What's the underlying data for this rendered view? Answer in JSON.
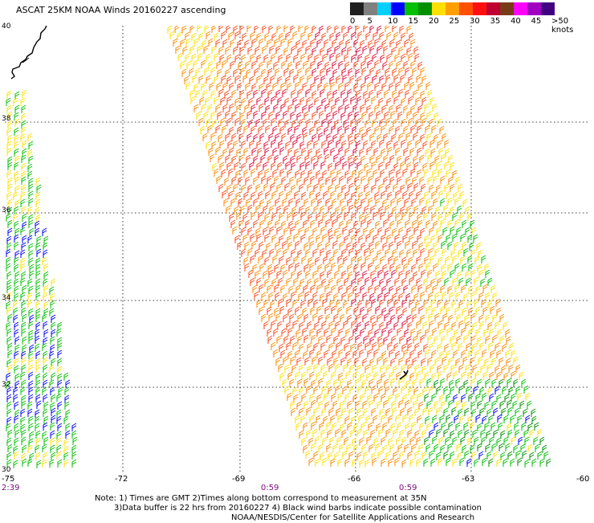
{
  "title": "ASCAT 25KM NOAA Winds 20160227 ascending",
  "legend": {
    "labels": [
      "0",
      "5",
      "10",
      "15",
      "20",
      "25",
      "30",
      "35",
      "40",
      "45",
      ">50 knots"
    ],
    "colors": [
      "#202020",
      "#808080",
      "#00cfff",
      "#0000ff",
      "#00c000",
      "#009000",
      "#ffe000",
      "#ffa000",
      "#ff5000",
      "#ff1010",
      "#c00030",
      "#7a3a1a",
      "#ff00ff",
      "#a000c0",
      "#400080"
    ]
  },
  "axes": {
    "y_labels": [
      "40",
      "38",
      "36",
      "34",
      "32",
      "30"
    ],
    "x_labels": [
      "-75",
      "-72",
      "-69",
      "-66",
      "-63",
      "-60"
    ]
  },
  "times": [
    "2:39",
    "0:59",
    "0:59"
  ],
  "notes": [
    "Note: 1) Times are GMT 2)Times along bottom correspond to measurement at 35N",
    "3)Data buffer is 22 hrs from 20160227 4) Black wind barbs indicate possible contamination",
    "NOAA/NESDIS/Center for Satellite Applications and Research"
  ],
  "chart_data": {
    "type": "wind-barb map",
    "lon_range": [
      -75,
      -60
    ],
    "lat_range": [
      30,
      40
    ],
    "grid": true,
    "units": "knots",
    "swaths": [
      {
        "time": "2:39",
        "speed_knots_range": [
          10,
          25
        ]
      },
      {
        "time": "0:59",
        "speed_knots_range": [
          10,
          35
        ]
      }
    ]
  }
}
